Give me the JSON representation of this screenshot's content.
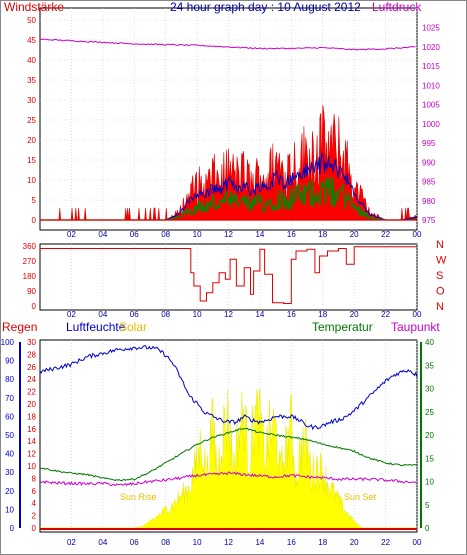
{
  "title": "24 hour graph day : 10 August 2012",
  "colors": {
    "wind": "#e00000",
    "gust_fill": "#ff0000",
    "avg_wind": "#0000c0",
    "low_wind": "#008800",
    "pressure": "#cc00cc",
    "humidity": "#0000cc",
    "temperature": "#007700",
    "dewpoint": "#cc00cc",
    "solar": "#ffff00",
    "rain": "#dd0000",
    "solar_label": "#e8c000",
    "frame": "#000000",
    "grid": "#cccccc"
  },
  "x_ticks": [
    "02",
    "04",
    "06",
    "08",
    "10",
    "12",
    "14",
    "16",
    "18",
    "20",
    "22",
    "00"
  ],
  "chart_data": [
    {
      "type": "line",
      "id": "wind-panel",
      "left_label": "Windstärke",
      "right_label": "Luftdruck",
      "left_ticks": [
        "0",
        "5",
        "10",
        "15",
        "20",
        "25",
        "30",
        "35",
        "40",
        "45",
        "50"
      ],
      "left_range": [
        0,
        50
      ],
      "right_ticks": [
        "975",
        "980",
        "985",
        "990",
        "995",
        "1000",
        "1005",
        "1010",
        "1015",
        "1020",
        "1025"
      ],
      "right_range": [
        975,
        1027
      ],
      "series": [
        {
          "name": "Windstärke",
          "axis": "left",
          "x": [
            0,
            1,
            2,
            3,
            4,
            5,
            6,
            7,
            8,
            8.8,
            9.5,
            10,
            10.5,
            11,
            11.5,
            12,
            12.5,
            13,
            13.5,
            14,
            14.5,
            15,
            15.5,
            16,
            16.5,
            17,
            17.5,
            18,
            18.5,
            19,
            19.5,
            20,
            20.5,
            21,
            22,
            23,
            24
          ],
          "y": [
            0,
            0,
            0,
            0,
            0,
            0,
            0,
            0,
            0,
            2,
            7,
            10,
            9,
            12,
            11,
            14,
            12,
            13,
            10,
            13,
            12,
            16,
            14,
            15,
            17,
            18,
            20,
            21,
            20,
            19,
            16,
            9,
            6,
            2,
            0,
            0,
            1
          ]
        },
        {
          "name": "Luftdruck",
          "axis": "right",
          "x": [
            0,
            2,
            4,
            6,
            8,
            10,
            12,
            14,
            16,
            18,
            20,
            22,
            24
          ],
          "y": [
            1022.0,
            1021.6,
            1021.2,
            1020.8,
            1020.6,
            1020.4,
            1020.0,
            1019.6,
            1019.6,
            1019.8,
            1019.3,
            1019.5,
            1020.0
          ]
        }
      ]
    },
    {
      "type": "line",
      "id": "direction-panel",
      "left_ticks": [
        "0",
        "90",
        "180",
        "270",
        "360"
      ],
      "left_range": [
        0,
        360
      ],
      "right_ticks": [
        "N",
        "W",
        "S",
        "O",
        "N"
      ],
      "series": [
        {
          "name": "Windrichtung",
          "x": [
            0,
            9.3,
            9.6,
            9.8,
            10.2,
            10.6,
            11.0,
            11.4,
            11.8,
            12.1,
            12.5,
            13.0,
            13.4,
            13.6,
            14.0,
            14.3,
            14.8,
            15.5,
            16.0,
            16.3,
            17.0,
            17.5,
            17.8,
            18.3,
            19.0,
            19.5,
            20.0,
            24
          ],
          "y": [
            345,
            345,
            200,
            120,
            30,
            80,
            140,
            200,
            160,
            280,
            120,
            230,
            70,
            210,
            340,
            190,
            20,
            15,
            280,
            330,
            340,
            200,
            300,
            330,
            345,
            250,
            355,
            355
          ]
        }
      ]
    },
    {
      "type": "line",
      "id": "climate-panel",
      "labels": {
        "rain": "Regen",
        "humidity": "Luftfeuchte",
        "solar": "Solar",
        "temperature": "Temperatur",
        "dewpoint": "Taupunkt"
      },
      "annotations": {
        "sunrise": "Sun Rise",
        "sunset": "Sun Set"
      },
      "humidity_ticks": [
        "0",
        "10",
        "20",
        "30",
        "40",
        "50",
        "60",
        "70",
        "80",
        "90",
        "100"
      ],
      "solar_ticks": [
        "0",
        "2",
        "4",
        "6",
        "8",
        "10",
        "12",
        "14",
        "16",
        "18",
        "20",
        "22",
        "24",
        "26",
        "28",
        "30"
      ],
      "temp_ticks": [
        "0",
        "5",
        "10",
        "15",
        "20",
        "25",
        "30",
        "35",
        "40"
      ],
      "temp_range": [
        0,
        40
      ],
      "humidity_range": [
        0,
        100
      ],
      "series": [
        {
          "name": "Luftfeuchte",
          "axis": "humidity",
          "x": [
            0,
            1,
            2,
            3,
            4,
            5,
            6,
            7,
            7.5,
            8,
            8.5,
            9,
            9.5,
            10,
            10.5,
            11,
            11.5,
            12,
            12.5,
            13,
            13.5,
            14,
            14.5,
            15,
            15.5,
            16,
            16.5,
            17,
            17.5,
            18,
            18.5,
            19,
            19.5,
            20,
            20.5,
            21,
            21.5,
            22,
            22.5,
            23,
            23.5,
            24
          ],
          "y": [
            84,
            86,
            88,
            92,
            94,
            96,
            97,
            97,
            96,
            93,
            88,
            80,
            71,
            67,
            62,
            60,
            58,
            57,
            57,
            60,
            58,
            57,
            58,
            60,
            60,
            60,
            58,
            55,
            54,
            55,
            57,
            58,
            60,
            63,
            67,
            71,
            75,
            79,
            82,
            84,
            85,
            82
          ]
        },
        {
          "name": "Temperatur",
          "axis": "temp",
          "x": [
            0,
            1,
            2,
            3,
            4,
            5,
            6,
            7,
            8,
            9,
            10,
            11,
            12,
            13,
            14,
            15,
            16,
            17,
            18,
            19,
            20,
            21,
            22,
            23,
            24
          ],
          "y": [
            13.0,
            12.3,
            11.8,
            11.5,
            10.7,
            10.3,
            10.5,
            12.0,
            14.0,
            16.0,
            18.0,
            19.5,
            20.5,
            21.5,
            20.5,
            20.0,
            19.5,
            19.0,
            18.0,
            17.3,
            16.5,
            15.0,
            14.0,
            13.5,
            13.5
          ]
        },
        {
          "name": "Taupunkt",
          "axis": "temp",
          "x": [
            0,
            1,
            2,
            3,
            4,
            5,
            6,
            7,
            8,
            9,
            10,
            11,
            12,
            13,
            14,
            15,
            16,
            17,
            18,
            19,
            20,
            21,
            22,
            23,
            24
          ],
          "y": [
            10.0,
            9.7,
            9.6,
            9.5,
            9.6,
            9.2,
            9.5,
            10.0,
            10.3,
            10.8,
            11.3,
            11.5,
            11.8,
            11.5,
            11.2,
            11.0,
            11.3,
            11.0,
            10.8,
            10.5,
            10.5,
            10.5,
            10.3,
            10.0,
            9.8
          ]
        },
        {
          "name": "Solar",
          "axis": "temp",
          "x": [
            0,
            6.0,
            6.5,
            7,
            7.5,
            8,
            8.5,
            9,
            9.5,
            10,
            10.3,
            10.6,
            11,
            11.3,
            11.6,
            12,
            12.3,
            12.6,
            13,
            13.3,
            13.6,
            14,
            14.3,
            14.6,
            15,
            15.3,
            15.6,
            16,
            16.3,
            16.6,
            17,
            17.3,
            17.6,
            18,
            18.5,
            19,
            19.5,
            20,
            20.5,
            24
          ],
          "y": [
            0,
            0,
            0.3,
            1.5,
            3,
            4.5,
            6,
            8,
            10,
            17,
            22,
            13,
            26,
            14,
            24,
            28,
            15,
            23,
            29,
            16,
            27,
            28,
            17,
            24,
            25,
            14,
            19,
            26,
            12,
            20,
            21,
            13,
            16,
            14,
            10,
            7,
            4,
            1.5,
            0,
            0
          ]
        },
        {
          "name": "Regen",
          "axis": "temp",
          "x": [
            0,
            24
          ],
          "y": [
            0,
            0
          ]
        }
      ]
    }
  ]
}
